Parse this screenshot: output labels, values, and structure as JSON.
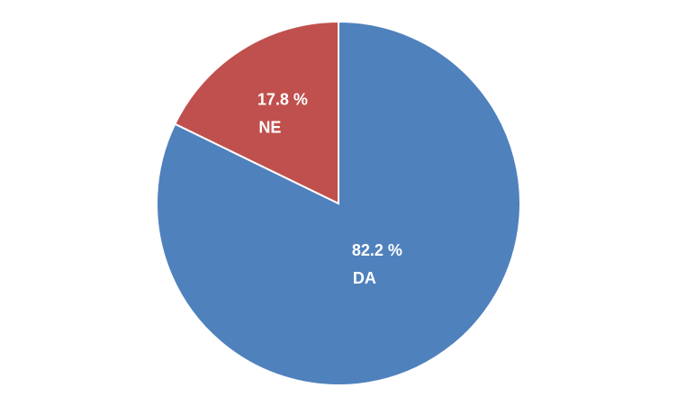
{
  "chart_data": {
    "type": "pie",
    "categories": [
      "DA",
      "NE"
    ],
    "values": [
      82.2,
      17.8
    ],
    "value_labels": [
      "82.2 %",
      "17.8 %"
    ],
    "colors": [
      "#4f81bd",
      "#c0504d"
    ]
  }
}
